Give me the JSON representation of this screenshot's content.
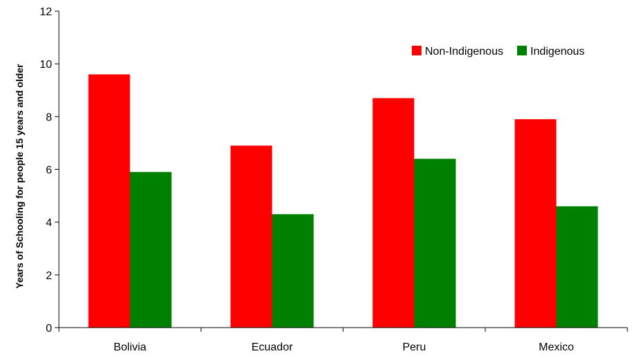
{
  "chart_data": {
    "type": "bar",
    "categories": [
      "Bolivia",
      "Ecuador",
      "Peru",
      "Mexico"
    ],
    "series": [
      {
        "name": "Non-Indigenous",
        "color": "#ff0000",
        "values": [
          9.6,
          6.9,
          8.7,
          7.9
        ]
      },
      {
        "name": "Indigenous",
        "color": "#008000",
        "values": [
          5.9,
          4.3,
          6.4,
          4.6
        ]
      }
    ],
    "title": "",
    "xlabel": "",
    "ylabel": "Years of Schooling for people 15 years and older",
    "ylim": [
      0,
      12
    ],
    "yticks": [
      0,
      2,
      4,
      6,
      8,
      10,
      12
    ],
    "grid": false,
    "legend_position": "top-right"
  }
}
